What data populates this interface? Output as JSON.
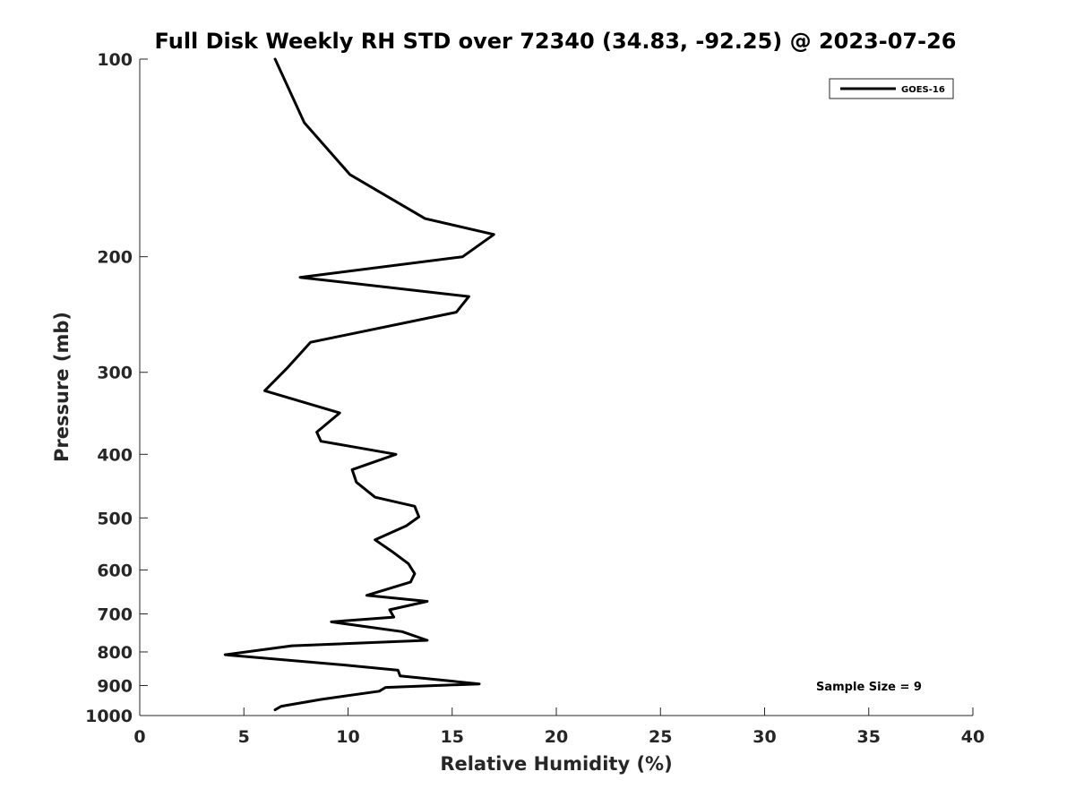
{
  "chart_data": {
    "type": "line",
    "title": "Full Disk Weekly RH STD over 72340 (34.83, -92.25) @ 2023-07-26",
    "xlabel": "Relative Humidity (%)",
    "ylabel": "Pressure (mb)",
    "xlim": [
      0,
      40
    ],
    "ylim": [
      100,
      1000
    ],
    "y_scale": "log",
    "y_reversed": true,
    "x_ticks": [
      0,
      5,
      10,
      15,
      20,
      25,
      30,
      35,
      40
    ],
    "y_ticks": [
      100,
      200,
      300,
      400,
      500,
      600,
      700,
      800,
      900,
      1000
    ],
    "grid": false,
    "legend_position": "top-right",
    "annotation": "Sample Size = 9",
    "series": [
      {
        "name": "GOES-16",
        "color": "#000000",
        "points": [
          [
            6.5,
            100
          ],
          [
            7.9,
            125
          ],
          [
            10.1,
            150
          ],
          [
            13.7,
            175
          ],
          [
            17.0,
            185
          ],
          [
            15.5,
            200
          ],
          [
            7.7,
            215
          ],
          [
            15.8,
            230
          ],
          [
            15.2,
            243
          ],
          [
            8.2,
            270
          ],
          [
            7.1,
            295
          ],
          [
            6.0,
            320
          ],
          [
            9.6,
            346
          ],
          [
            8.5,
            370
          ],
          [
            8.7,
            382
          ],
          [
            12.3,
            400
          ],
          [
            10.2,
            422
          ],
          [
            10.4,
            441
          ],
          [
            11.3,
            465
          ],
          [
            13.2,
            480
          ],
          [
            13.4,
            498
          ],
          [
            12.8,
            514
          ],
          [
            11.3,
            540
          ],
          [
            12.1,
            562
          ],
          [
            12.9,
            587
          ],
          [
            13.2,
            608
          ],
          [
            13.0,
            626
          ],
          [
            10.9,
            656
          ],
          [
            13.8,
            670
          ],
          [
            12.0,
            690
          ],
          [
            12.2,
            708
          ],
          [
            9.2,
            720
          ],
          [
            12.6,
            745
          ],
          [
            13.8,
            768
          ],
          [
            7.3,
            783
          ],
          [
            4.1,
            808
          ],
          [
            9.9,
            838
          ],
          [
            12.4,
            853
          ],
          [
            12.5,
            870
          ],
          [
            16.3,
            895
          ],
          [
            11.8,
            906
          ],
          [
            11.5,
            918
          ],
          [
            8.7,
            945
          ],
          [
            6.8,
            968
          ],
          [
            6.5,
            980
          ]
        ]
      }
    ]
  }
}
